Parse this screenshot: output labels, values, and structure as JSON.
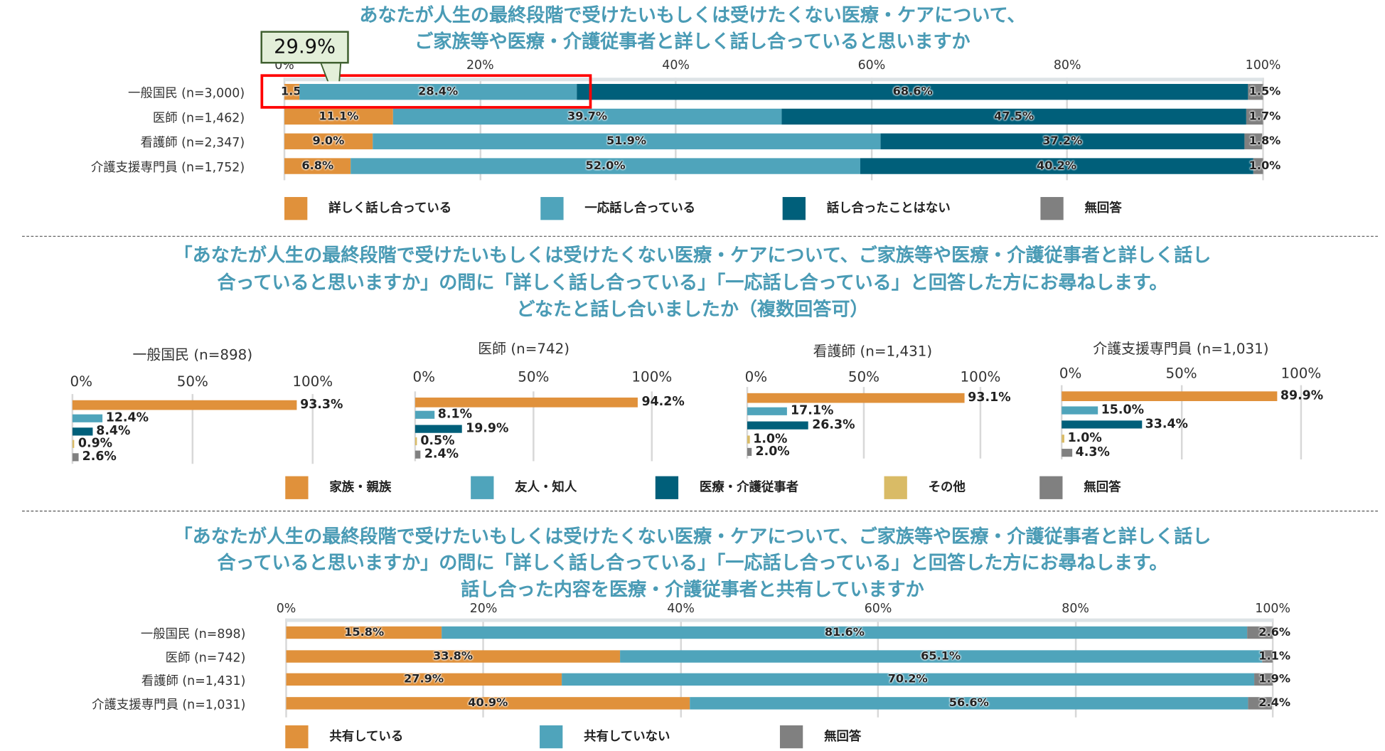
{
  "colors": {
    "orange": "#e0913b",
    "light_blue": "#4fa4bb",
    "dark_teal": "#005f7a",
    "gray": "#808080",
    "yellow": "#d9bb66",
    "title": "#4a9bb5",
    "highlight": "#ff0000"
  },
  "section1": {
    "title_lines": [
      "あなたが人生の最終段階で受けたいもしくは受けたくない医療・ケアについて、",
      "ご家族等や医療・介護従事者と詳しく話し合っていると思いますか"
    ],
    "callout": "29.9%"
  },
  "section2": {
    "title_lines": [
      "「あなたが人生の最終段階で受けたいもしくは受けたくない医療・ケアについて、ご家族等や医療・介護従事者と詳しく話し",
      "合っていると思いますか」の問に「詳しく話し合っている」「一応話し合っている」と回答した方にお尋ねします。",
      "どなたと話し合いましたか（複数回答可）"
    ]
  },
  "section3": {
    "title_lines": [
      "「あなたが人生の最終段階で受けたいもしくは受けたくない医療・ケアについて、ご家族等や医療・介護従事者と詳しく話し",
      "合っていると思いますか」の問に「詳しく話し合っている」「一応話し合っている」と回答した方にお尋ねします。",
      "話し合った内容を医療・介護従事者と共有していますか"
    ]
  },
  "chart_data": [
    {
      "type": "bar",
      "stacked": true,
      "orientation": "horizontal",
      "xlim": [
        0,
        100
      ],
      "ticks": [
        "0%",
        "20%",
        "40%",
        "60%",
        "80%",
        "100%"
      ],
      "grid": true,
      "legend": "bottom",
      "categories": [
        "一般国民 (n=3,000)",
        "医師 (n=1,462)",
        "看護師 (n=2,347)",
        "介護支援専門員 (n=1,752)"
      ],
      "series": [
        {
          "name": "詳しく話し合っている",
          "color": "#e0913b",
          "values": [
            1.5,
            11.1,
            9.0,
            6.8
          ]
        },
        {
          "name": "一応話し合っている",
          "color": "#4fa4bb",
          "values": [
            28.4,
            39.7,
            51.9,
            52.0
          ]
        },
        {
          "name": "話し合ったことはない",
          "color": "#005f7a",
          "values": [
            68.6,
            47.5,
            37.2,
            40.2
          ]
        },
        {
          "name": "無回答",
          "color": "#808080",
          "values": [
            1.5,
            1.7,
            1.8,
            1.0
          ]
        }
      ]
    },
    {
      "type": "bar",
      "orientation": "horizontal",
      "panels": [
        {
          "title": "一般国民 (n=898)",
          "values": [
            93.3,
            12.4,
            8.4,
            0.9,
            2.6
          ]
        },
        {
          "title": "医師 (n=742)",
          "values": [
            94.2,
            8.1,
            19.9,
            0.5,
            2.4
          ]
        },
        {
          "title": "看護師 (n=1,431)",
          "values": [
            93.1,
            17.1,
            26.3,
            1.0,
            2.0
          ]
        },
        {
          "title": "介護支援専門員 (n=1,031)",
          "values": [
            89.9,
            15.0,
            33.4,
            1.0,
            4.3
          ]
        }
      ],
      "xlim": [
        0,
        100
      ],
      "ticks": [
        "0%",
        "50%",
        "100%"
      ],
      "grid": true,
      "legend": "bottom",
      "series": [
        {
          "name": "家族・親族",
          "color": "#e0913b"
        },
        {
          "name": "友人・知人",
          "color": "#4fa4bb"
        },
        {
          "name": "医療・介護従事者",
          "color": "#005f7a"
        },
        {
          "name": "その他",
          "color": "#d9bb66"
        },
        {
          "name": "無回答",
          "color": "#808080"
        }
      ]
    },
    {
      "type": "bar",
      "stacked": true,
      "orientation": "horizontal",
      "xlim": [
        0,
        100
      ],
      "ticks": [
        "0%",
        "20%",
        "40%",
        "60%",
        "80%",
        "100%"
      ],
      "grid": true,
      "legend": "bottom",
      "categories": [
        "一般国民 (n=898)",
        "医師 (n=742)",
        "看護師 (n=1,431)",
        "介護支援専門員 (n=1,031)"
      ],
      "series": [
        {
          "name": "共有している",
          "color": "#e0913b",
          "values": [
            15.8,
            33.8,
            27.9,
            40.9
          ]
        },
        {
          "name": "共有していない",
          "color": "#4fa4bb",
          "values": [
            81.6,
            65.1,
            70.2,
            56.6
          ]
        },
        {
          "name": "無回答",
          "color": "#808080",
          "values": [
            2.6,
            1.1,
            1.9,
            2.4
          ]
        }
      ]
    }
  ]
}
